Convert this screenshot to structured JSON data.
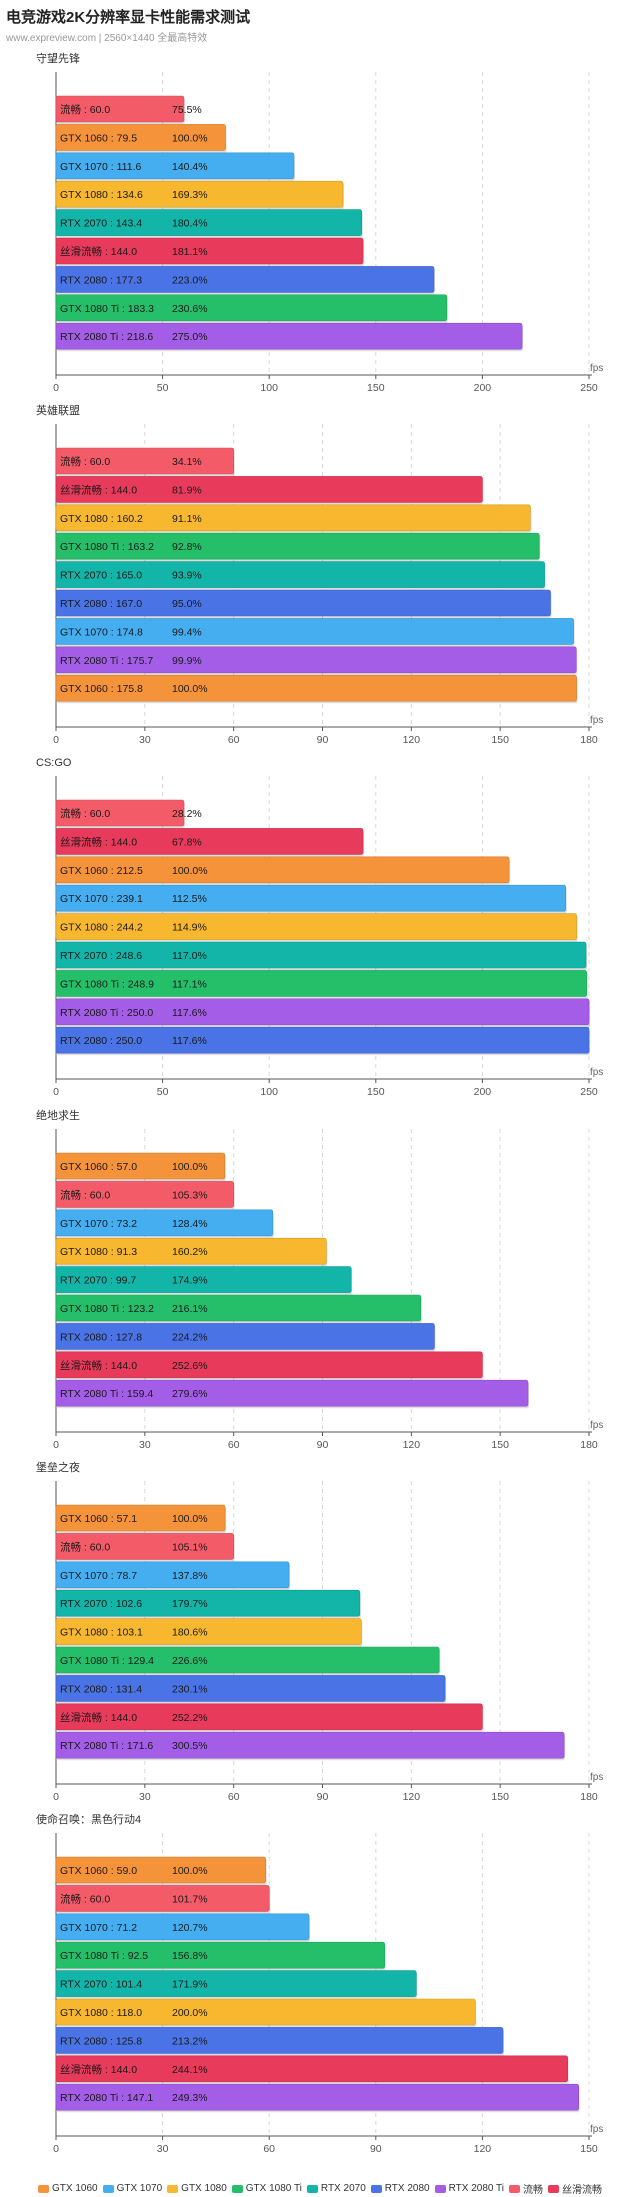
{
  "header": {
    "title": "电竞游戏2K分辨率显卡性能需求测试",
    "subtitle": "www.expreview.com | 2560×1440 全最高特效"
  },
  "axis_unit": "fps",
  "colors": {
    "GTX 1060": "#f5933a",
    "GTX 1070": "#45aef0",
    "GTX 1080": "#f7b72f",
    "GTX 1080 Ti": "#25bf6a",
    "RTX 2070": "#12b5a8",
    "RTX 2080": "#4a74e6",
    "RTX 2080 Ti": "#a45de6",
    "流畅": "#f45b68",
    "丝滑流畅": "#e83a5a"
  },
  "legend": [
    "GTX 1060",
    "GTX 1070",
    "GTX 1080",
    "GTX 1080 Ti",
    "RTX 2070",
    "RTX 2080",
    "RTX 2080 Ti",
    "流畅",
    "丝滑流畅"
  ],
  "chart_data": [
    {
      "type": "bar",
      "orientation": "horizontal",
      "title": "守望先锋",
      "xlim": [
        0,
        250
      ],
      "xticks": [
        0,
        50,
        100,
        150,
        200,
        250
      ],
      "xlabel": "fps",
      "bars": [
        {
          "name": "流畅",
          "value": 60.0,
          "pct": "75.5%"
        },
        {
          "name": "GTX 1060",
          "value": 79.5,
          "pct": "100.0%"
        },
        {
          "name": "GTX 1070",
          "value": 111.6,
          "pct": "140.4%"
        },
        {
          "name": "GTX 1080",
          "value": 134.6,
          "pct": "169.3%"
        },
        {
          "name": "RTX 2070",
          "value": 143.4,
          "pct": "180.4%"
        },
        {
          "name": "丝滑流畅",
          "value": 144.0,
          "pct": "181.1%"
        },
        {
          "name": "RTX 2080",
          "value": 177.3,
          "pct": "223.0%"
        },
        {
          "name": "GTX 1080 Ti",
          "value": 183.3,
          "pct": "230.6%"
        },
        {
          "name": "RTX 2080 Ti",
          "value": 218.6,
          "pct": "275.0%"
        }
      ]
    },
    {
      "type": "bar",
      "orientation": "horizontal",
      "title": "英雄联盟",
      "xlim": [
        0,
        180
      ],
      "xticks": [
        0,
        30,
        60,
        90,
        120,
        150,
        180
      ],
      "xlabel": "fps",
      "bars": [
        {
          "name": "流畅",
          "value": 60.0,
          "pct": "34.1%"
        },
        {
          "name": "丝滑流畅",
          "value": 144.0,
          "pct": "81.9%"
        },
        {
          "name": "GTX 1080",
          "value": 160.2,
          "pct": "91.1%"
        },
        {
          "name": "GTX 1080 Ti",
          "value": 163.2,
          "pct": "92.8%"
        },
        {
          "name": "RTX 2070",
          "value": 165.0,
          "pct": "93.9%"
        },
        {
          "name": "RTX 2080",
          "value": 167.0,
          "pct": "95.0%"
        },
        {
          "name": "GTX 1070",
          "value": 174.8,
          "pct": "99.4%"
        },
        {
          "name": "RTX 2080 Ti",
          "value": 175.7,
          "pct": "99.9%"
        },
        {
          "name": "GTX 1060",
          "value": 175.8,
          "pct": "100.0%"
        }
      ]
    },
    {
      "type": "bar",
      "orientation": "horizontal",
      "title": "CS:GO",
      "xlim": [
        0,
        250
      ],
      "xticks": [
        0,
        50,
        100,
        150,
        200,
        250
      ],
      "xlabel": "fps",
      "bars": [
        {
          "name": "流畅",
          "value": 60.0,
          "pct": "28.2%"
        },
        {
          "name": "丝滑流畅",
          "value": 144.0,
          "pct": "67.8%"
        },
        {
          "name": "GTX 1060",
          "value": 212.5,
          "pct": "100.0%"
        },
        {
          "name": "GTX 1070",
          "value": 239.1,
          "pct": "112.5%"
        },
        {
          "name": "GTX 1080",
          "value": 244.2,
          "pct": "114.9%"
        },
        {
          "name": "RTX 2070",
          "value": 248.6,
          "pct": "117.0%"
        },
        {
          "name": "GTX 1080 Ti",
          "value": 248.9,
          "pct": "117.1%"
        },
        {
          "name": "RTX 2080 Ti",
          "value": 250.0,
          "pct": "117.6%"
        },
        {
          "name": "RTX 2080",
          "value": 250.0,
          "pct": "117.6%"
        }
      ]
    },
    {
      "type": "bar",
      "orientation": "horizontal",
      "title": "绝地求生",
      "xlim": [
        0,
        180
      ],
      "xticks": [
        0,
        30,
        60,
        90,
        120,
        150,
        180
      ],
      "xlabel": "fps",
      "bars": [
        {
          "name": "GTX 1060",
          "value": 57.0,
          "pct": "100.0%"
        },
        {
          "name": "流畅",
          "value": 60.0,
          "pct": "105.3%"
        },
        {
          "name": "GTX 1070",
          "value": 73.2,
          "pct": "128.4%"
        },
        {
          "name": "GTX 1080",
          "value": 91.3,
          "pct": "160.2%"
        },
        {
          "name": "RTX 2070",
          "value": 99.7,
          "pct": "174.9%"
        },
        {
          "name": "GTX 1080 Ti",
          "value": 123.2,
          "pct": "216.1%"
        },
        {
          "name": "RTX 2080",
          "value": 127.8,
          "pct": "224.2%"
        },
        {
          "name": "丝滑流畅",
          "value": 144.0,
          "pct": "252.6%"
        },
        {
          "name": "RTX 2080 Ti",
          "value": 159.4,
          "pct": "279.6%"
        }
      ]
    },
    {
      "type": "bar",
      "orientation": "horizontal",
      "title": "堡垒之夜",
      "xlim": [
        0,
        180
      ],
      "xticks": [
        0,
        30,
        60,
        90,
        120,
        150,
        180
      ],
      "xlabel": "fps",
      "bars": [
        {
          "name": "GTX 1060",
          "value": 57.1,
          "pct": "100.0%"
        },
        {
          "name": "流畅",
          "value": 60.0,
          "pct": "105.1%"
        },
        {
          "name": "GTX 1070",
          "value": 78.7,
          "pct": "137.8%"
        },
        {
          "name": "RTX 2070",
          "value": 102.6,
          "pct": "179.7%"
        },
        {
          "name": "GTX 1080",
          "value": 103.1,
          "pct": "180.6%"
        },
        {
          "name": "GTX 1080 Ti",
          "value": 129.4,
          "pct": "226.6%"
        },
        {
          "name": "RTX 2080",
          "value": 131.4,
          "pct": "230.1%"
        },
        {
          "name": "丝滑流畅",
          "value": 144.0,
          "pct": "252.2%"
        },
        {
          "name": "RTX 2080 Ti",
          "value": 171.6,
          "pct": "300.5%"
        }
      ]
    },
    {
      "type": "bar",
      "orientation": "horizontal",
      "title": "使命召唤：黑色行动4",
      "xlim": [
        0,
        150
      ],
      "xticks": [
        0,
        30,
        60,
        90,
        120,
        150
      ],
      "xlabel": "fps",
      "bars": [
        {
          "name": "GTX 1060",
          "value": 59.0,
          "pct": "100.0%"
        },
        {
          "name": "流畅",
          "value": 60.0,
          "pct": "101.7%"
        },
        {
          "name": "GTX 1070",
          "value": 71.2,
          "pct": "120.7%"
        },
        {
          "name": "GTX 1080 Ti",
          "value": 92.5,
          "pct": "156.8%"
        },
        {
          "name": "RTX 2070",
          "value": 101.4,
          "pct": "171.9%"
        },
        {
          "name": "GTX 1080",
          "value": 118.0,
          "pct": "200.0%"
        },
        {
          "name": "RTX 2080",
          "value": 125.8,
          "pct": "213.2%"
        },
        {
          "name": "丝滑流畅",
          "value": 144.0,
          "pct": "244.1%"
        },
        {
          "name": "RTX 2080 Ti",
          "value": 147.1,
          "pct": "249.3%"
        }
      ]
    }
  ]
}
